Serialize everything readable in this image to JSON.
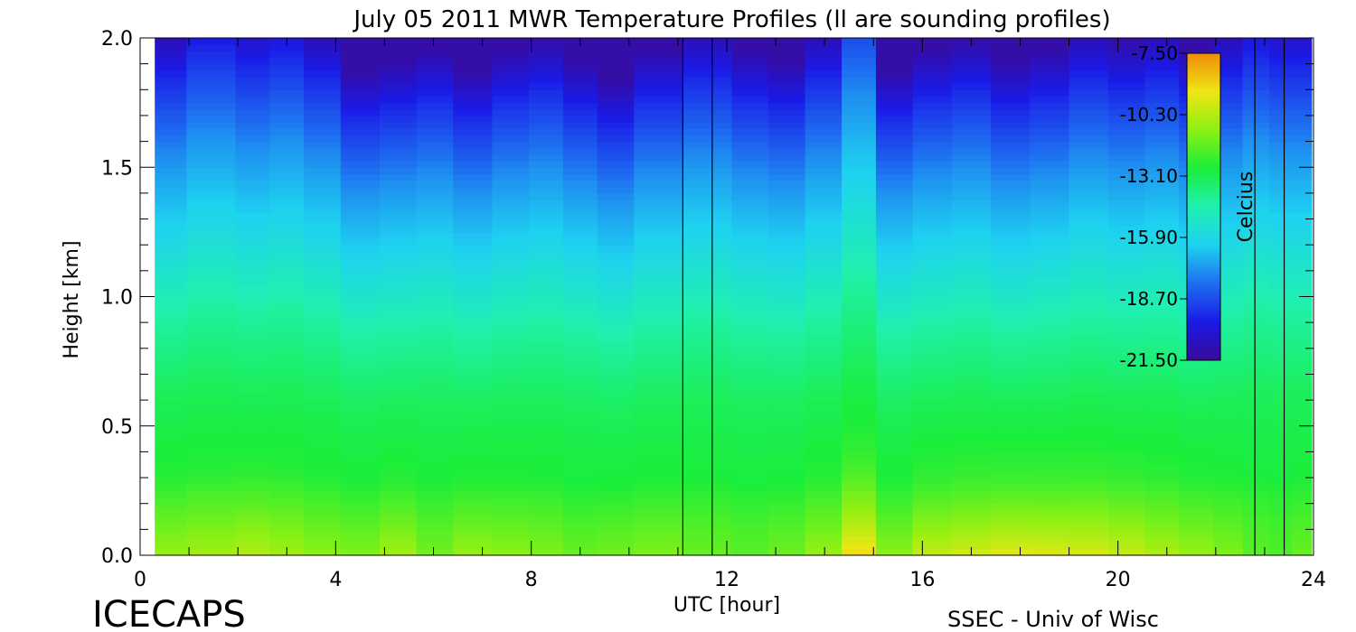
{
  "chart_data": {
    "type": "heatmap",
    "title": "July 05 2011 MWR Temperature Profiles (ll are sounding profiles)",
    "xlabel": "UTC [hour]",
    "ylabel": "Height [km]",
    "xlim": [
      0,
      24
    ],
    "ylim": [
      0.0,
      2.0
    ],
    "x_ticks": [
      "0",
      "4",
      "8",
      "12",
      "16",
      "20",
      "24"
    ],
    "y_ticks": [
      "0.0",
      "0.5",
      "1.0",
      "1.5",
      "2.0"
    ],
    "colorbar": {
      "label": "Celcius",
      "range": [
        -21.5,
        -7.5
      ],
      "tick_labels": [
        "-7.50",
        "-10.30",
        "-13.10",
        "-15.90",
        "-18.70",
        "-21.50"
      ]
    },
    "sounding_times_utc": [
      11.1,
      11.7,
      22.8,
      23.4
    ],
    "profile_times_utc": [
      0.3,
      1.6,
      2.3,
      3.0,
      3.7,
      4.5,
      5.3,
      6.0,
      6.8,
      7.6,
      8.3,
      9.0,
      9.7,
      10.5,
      11.7,
      12.5,
      13.2,
      14.0,
      14.7,
      15.4,
      16.2,
      17.0,
      17.8,
      18.6,
      19.4,
      20.2,
      20.9,
      21.6,
      22.3,
      22.8,
      23.4,
      23.7
    ],
    "top_layer_height_km": [
      1.8,
      1.85,
      1.82,
      1.84,
      1.8,
      1.72,
      1.74,
      1.76,
      1.72,
      1.76,
      1.78,
      1.74,
      1.7,
      1.76,
      1.8,
      1.76,
      1.74,
      1.8,
      1.92,
      1.72,
      1.76,
      1.78,
      1.74,
      1.76,
      1.8,
      1.78,
      1.8,
      1.76,
      1.8,
      1.84,
      1.82,
      1.82
    ],
    "surface_temperature_c": [
      -10.8,
      -10.6,
      -10.3,
      -10.6,
      -11.0,
      -11.2,
      -10.6,
      -11.4,
      -10.8,
      -11.0,
      -11.2,
      -11.6,
      -11.4,
      -11.2,
      -11.6,
      -11.8,
      -11.5,
      -10.8,
      -8.9,
      -11.0,
      -10.0,
      -9.7,
      -9.4,
      -9.5,
      -9.6,
      -9.9,
      -10.4,
      -10.8,
      -11.2,
      -11.8,
      -12.0,
      -11.6
    ],
    "profile_temperature_c": [
      [
        0.0,
        -10.9
      ],
      [
        0.3,
        -12.6
      ],
      [
        0.6,
        -13.2
      ],
      [
        0.9,
        -14.3
      ],
      [
        1.2,
        -16.0
      ],
      [
        1.5,
        -17.4
      ],
      [
        1.8,
        -19.4
      ],
      [
        2.0,
        -21.2
      ]
    ]
  },
  "branding": {
    "logo": "ICECAPS",
    "credit": "SSEC - Univ of Wisc"
  },
  "colors": {
    "colormap": [
      "#3a0a9a",
      "#1a1ae6",
      "#1e6ef0",
      "#1ed2f0",
      "#20f0b0",
      "#1aee3a",
      "#8cf014",
      "#f0e614",
      "#f08c0a"
    ],
    "axis": "#000000",
    "background": "#ffffff"
  }
}
